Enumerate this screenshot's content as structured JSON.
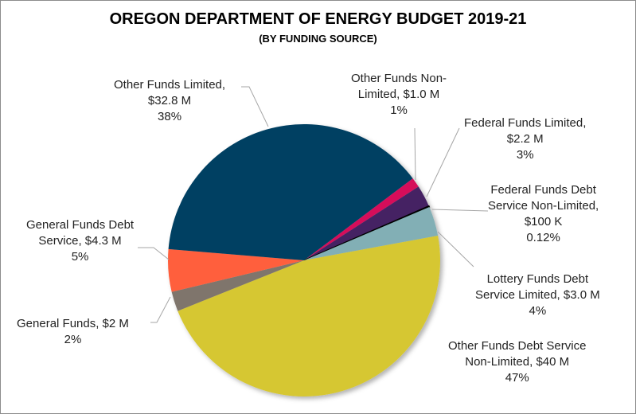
{
  "chart_data": {
    "type": "pie",
    "title": "OREGON DEPARTMENT OF ENERGY BUDGET 2019-21",
    "subtitle": "(BY FUNDING SOURCE)",
    "legend": "none (data labels)",
    "slices": [
      {
        "name": "Other Funds Non-Limited",
        "value_label": "$1.0 M",
        "value": 1.0,
        "percent": "1%",
        "color": "#D6105A"
      },
      {
        "name": "Federal Funds Limited",
        "value_label": "$2.2 M",
        "value": 2.2,
        "percent": "3%",
        "color": "#452064"
      },
      {
        "name": "Federal Funds Debt Service Non-Limited",
        "value_label": "$100 K",
        "value": 0.1,
        "percent": "0.12%",
        "color": "#000000"
      },
      {
        "name": "Lottery Funds Debt Service Limited",
        "value_label": "$3.0 M",
        "value": 3.0,
        "percent": "4%",
        "color": "#82AFB5"
      },
      {
        "name": "Other Funds Debt Service Non-Limited",
        "value_label": "$40 M",
        "value": 40,
        "percent": "47%",
        "color": "#D6C733"
      },
      {
        "name": "General Funds",
        "value_label": "$2 M",
        "value": 2,
        "percent": "2%",
        "color": "#7F756C"
      },
      {
        "name": "General Funds Debt Service",
        "value_label": "$4.3 M",
        "value": 4.3,
        "percent": "5%",
        "color": "#FF5F3C"
      },
      {
        "name": "Other Funds Limited",
        "value_label": "$32.8 M",
        "value": 32.8,
        "percent": "38%",
        "color": "#003F62"
      }
    ]
  },
  "labels": {
    "l0": [
      "Other Funds Non-",
      "Limited, $1.0 M",
      "1%"
    ],
    "l1": [
      "Federal Funds Limited,",
      "$2.2 M",
      "3%"
    ],
    "l2": [
      "Federal Funds Debt",
      "Service Non-Limited,",
      "$100 K",
      "0.12%"
    ],
    "l3": [
      "Lottery Funds Debt",
      "Service Limited, $3.0 M",
      "4%"
    ],
    "l4": [
      "Other Funds Debt Service",
      "Non-Limited, $40 M",
      "47%"
    ],
    "l5": [
      "General Funds, $2 M",
      "2%"
    ],
    "l6": [
      "General Funds Debt",
      "Service, $4.3 M",
      "5%"
    ],
    "l7": [
      "Other Funds Limited,",
      "$32.8 M",
      "38%"
    ]
  }
}
